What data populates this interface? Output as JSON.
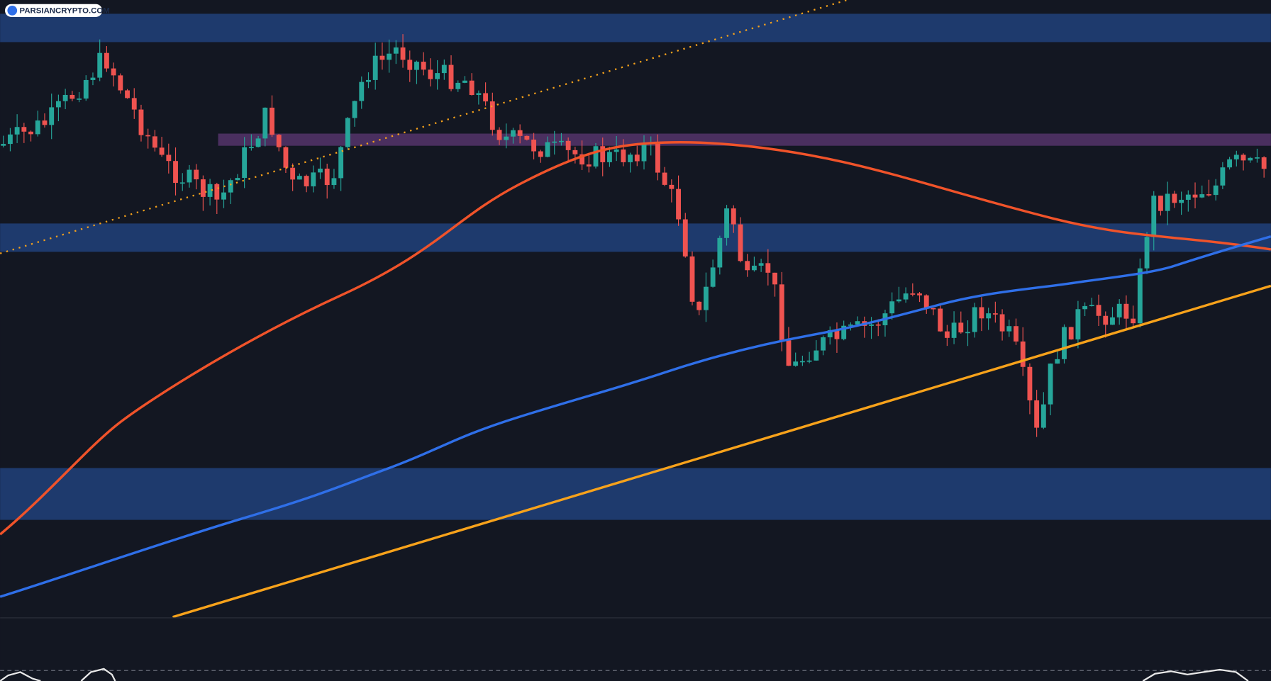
{
  "watermark": {
    "text": "PARSIANCRYPTO.COM"
  }
}
